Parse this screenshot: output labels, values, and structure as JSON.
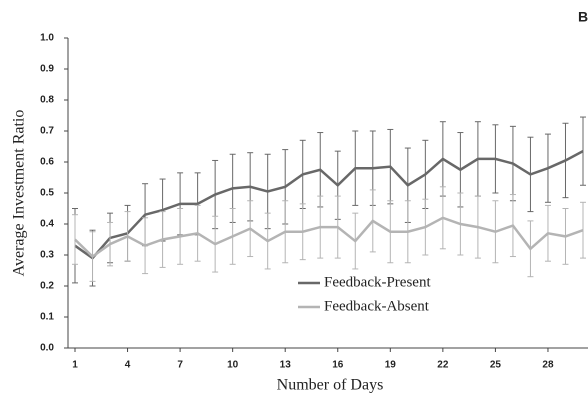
{
  "chart_data": {
    "type": "line",
    "panel_label": "B",
    "xlabel": "Number of Days",
    "ylabel": "Average Investment Ratio",
    "x": [
      1,
      2,
      3,
      4,
      5,
      6,
      7,
      8,
      9,
      10,
      11,
      12,
      13,
      14,
      15,
      16,
      17,
      18,
      19,
      20,
      21,
      22,
      23,
      24,
      25,
      26,
      27,
      28,
      29,
      30
    ],
    "series": [
      {
        "name": "Feedback-Present",
        "color": "#686868",
        "values": [
          0.33,
          0.29,
          0.355,
          0.37,
          0.43,
          0.445,
          0.465,
          0.465,
          0.495,
          0.515,
          0.52,
          0.505,
          0.52,
          0.56,
          0.575,
          0.525,
          0.58,
          0.58,
          0.585,
          0.525,
          0.56,
          0.61,
          0.575,
          0.61,
          0.61,
          0.595,
          0.56,
          0.58,
          0.605,
          0.635
        ],
        "errors": [
          0.12,
          0.09,
          0.08,
          0.09,
          0.1,
          0.1,
          0.1,
          0.1,
          0.11,
          0.11,
          0.11,
          0.12,
          0.12,
          0.11,
          0.12,
          0.11,
          0.12,
          0.12,
          0.12,
          0.12,
          0.11,
          0.12,
          0.12,
          0.12,
          0.11,
          0.12,
          0.12,
          0.11,
          0.12,
          0.11
        ]
      },
      {
        "name": "Feedback-Absent",
        "color": "#b4b4b4",
        "values": [
          0.35,
          0.295,
          0.335,
          0.36,
          0.33,
          0.35,
          0.36,
          0.37,
          0.335,
          0.36,
          0.385,
          0.345,
          0.375,
          0.375,
          0.39,
          0.39,
          0.345,
          0.41,
          0.375,
          0.375,
          0.39,
          0.42,
          0.4,
          0.39,
          0.375,
          0.395,
          0.32,
          0.37,
          0.36,
          0.38
        ],
        "errors": [
          0.08,
          0.08,
          0.07,
          0.08,
          0.09,
          0.09,
          0.09,
          0.09,
          0.09,
          0.09,
          0.09,
          0.09,
          0.1,
          0.09,
          0.1,
          0.1,
          0.09,
          0.1,
          0.1,
          0.1,
          0.09,
          0.1,
          0.1,
          0.1,
          0.1,
          0.1,
          0.09,
          0.09,
          0.09,
          0.09
        ]
      }
    ],
    "xlim": [
      1,
      30
    ],
    "xticks": [
      1,
      4,
      7,
      10,
      13,
      16,
      19,
      22,
      25,
      28
    ],
    "ylim": [
      0,
      1
    ],
    "yticks": [
      {
        "value": 0,
        "label": "0.0"
      },
      0.1,
      0.2,
      0.3,
      0.4,
      0.5,
      0.6,
      0.7,
      0.8,
      0.9,
      {
        "value": 1,
        "label": "1.0"
      }
    ],
    "legend_position": "center"
  }
}
